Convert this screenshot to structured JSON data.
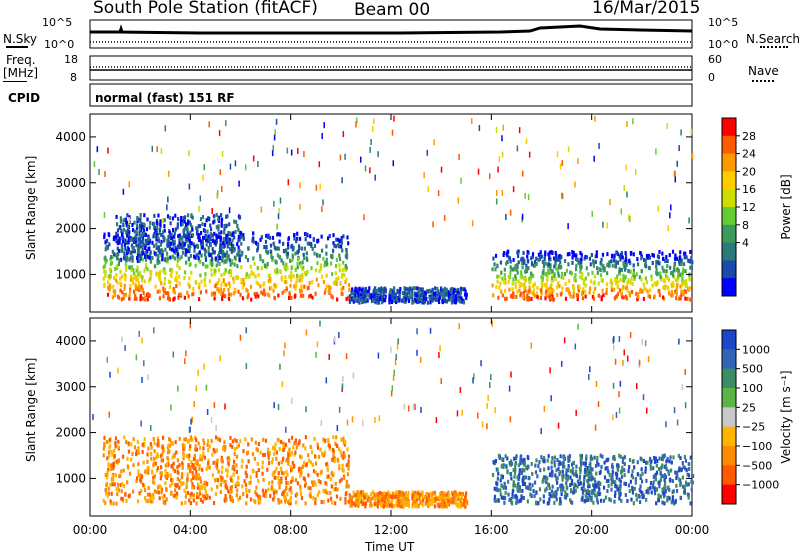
{
  "header": {
    "station": "South Pole Station (fitACF)",
    "beam": "Beam 00",
    "date": "16/Mar/2015"
  },
  "top_panels": {
    "nsky_label": "N.Sky",
    "nsearch_label": "N.Search",
    "noise_ticks": [
      "10^5",
      "10^0"
    ],
    "freq_label_1": "Freq.",
    "freq_label_2": "[MHz]",
    "freq_ticks": [
      "18",
      "8"
    ],
    "nave_label": "Nave",
    "nave_ticks": [
      "60",
      "0"
    ],
    "cpid_label": "CPID",
    "cpid_text": "normal (fast) 151 RF"
  },
  "x_axis": {
    "ticks": [
      "00:00",
      "04:00",
      "08:00",
      "12:00",
      "16:00",
      "20:00",
      "00:00"
    ],
    "label": "Time UT"
  },
  "chart_data": [
    {
      "type": "heatmap",
      "panel": "power",
      "ylabel": "Slant Range [km]",
      "yticks": [
        "4000",
        "3000",
        "2000",
        "1000"
      ],
      "ylim": [
        180,
        4500
      ],
      "xlim": [
        0,
        24
      ],
      "colorbar": {
        "label": "Power [dB]",
        "ticks": [
          "28",
          "24",
          "20",
          "16",
          "12",
          "8",
          "4"
        ],
        "colors": [
          "#ff0000",
          "#ff5a00",
          "#ff9900",
          "#ffcc00",
          "#ccdd00",
          "#66cc33",
          "#3a9a5a",
          "#2a7a7a",
          "#1a4aaa",
          "#0000ff"
        ]
      },
      "echo_regions": [
        {
          "t": [
            0.5,
            10.3
          ],
          "range": [
            450,
            1900
          ],
          "level": "high"
        },
        {
          "t": [
            1.0,
            6.0
          ],
          "range": [
            1300,
            2300
          ],
          "level": "low"
        },
        {
          "t": [
            10.3,
            15.0
          ],
          "range": [
            380,
            700
          ],
          "level": "low"
        },
        {
          "t": [
            16.0,
            24.0
          ],
          "range": [
            450,
            1500
          ],
          "level": "high"
        }
      ]
    },
    {
      "type": "heatmap",
      "panel": "velocity",
      "ylabel": "Slant Range [km]",
      "yticks": [
        "4000",
        "3000",
        "2000",
        "1000"
      ],
      "ylim": [
        180,
        4500
      ],
      "xlim": [
        0,
        24
      ],
      "colorbar": {
        "label": "Velocity [m s⁻¹]",
        "ticks": [
          "1000",
          "500",
          "100",
          "25",
          "−25",
          "−100",
          "−500",
          "−1000"
        ],
        "colors": [
          "#1e46c8",
          "#3264b4",
          "#3c8c64",
          "#5ab446",
          "#c8c8c8",
          "#ffb400",
          "#ff8c00",
          "#ff5a00",
          "#ff0000"
        ]
      },
      "echo_regions": [
        {
          "t": [
            0.5,
            10.3
          ],
          "range": [
            450,
            1900
          ],
          "velocity": "negative"
        },
        {
          "t": [
            10.3,
            15.0
          ],
          "range": [
            380,
            700
          ],
          "velocity": "negative"
        },
        {
          "t": [
            16.0,
            24.0
          ],
          "range": [
            450,
            1500
          ],
          "velocity": "positive"
        }
      ]
    }
  ]
}
